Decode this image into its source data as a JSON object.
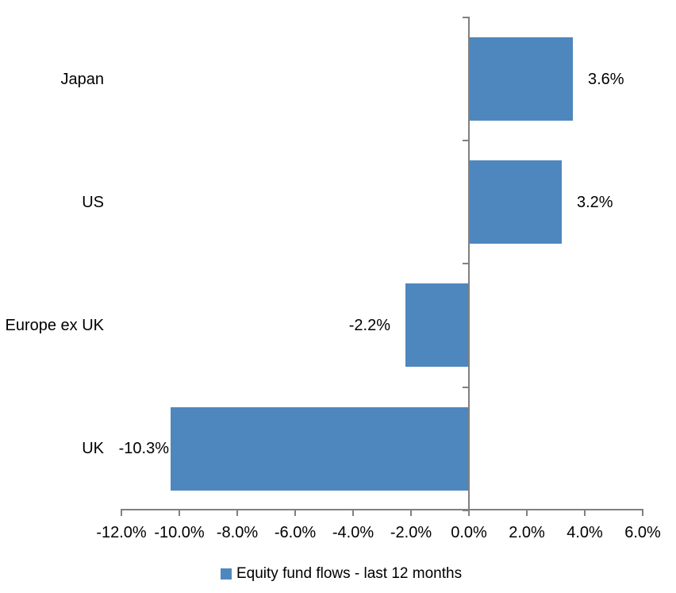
{
  "chart_data": {
    "type": "bar",
    "orientation": "horizontal",
    "title": "",
    "categories": [
      "Japan",
      "US",
      "Europe ex UK",
      "UK"
    ],
    "values": [
      3.6,
      3.2,
      -2.2,
      -10.3
    ],
    "data_labels": [
      "3.6%",
      "3.2%",
      "-2.2%",
      "-10.3%"
    ],
    "series_name": "Equity fund flows - last 12 months",
    "x_ticks": [
      "-12.0%",
      "-10.0%",
      "-8.0%",
      "-6.0%",
      "-4.0%",
      "-2.0%",
      "0.0%",
      "2.0%",
      "4.0%",
      "6.0%"
    ],
    "x_tick_values": [
      -12,
      -10,
      -8,
      -6,
      -4,
      -2,
      0,
      2,
      4,
      6
    ],
    "xlim": [
      -12,
      6
    ],
    "grid": false,
    "legend_position": "bottom",
    "bar_color": "#4E87BE",
    "axis_color": "#808080",
    "text_color": "#000000"
  },
  "legend": {
    "label": "Equity fund flows - last 12 months",
    "swatch_color": "#4E87BE"
  }
}
